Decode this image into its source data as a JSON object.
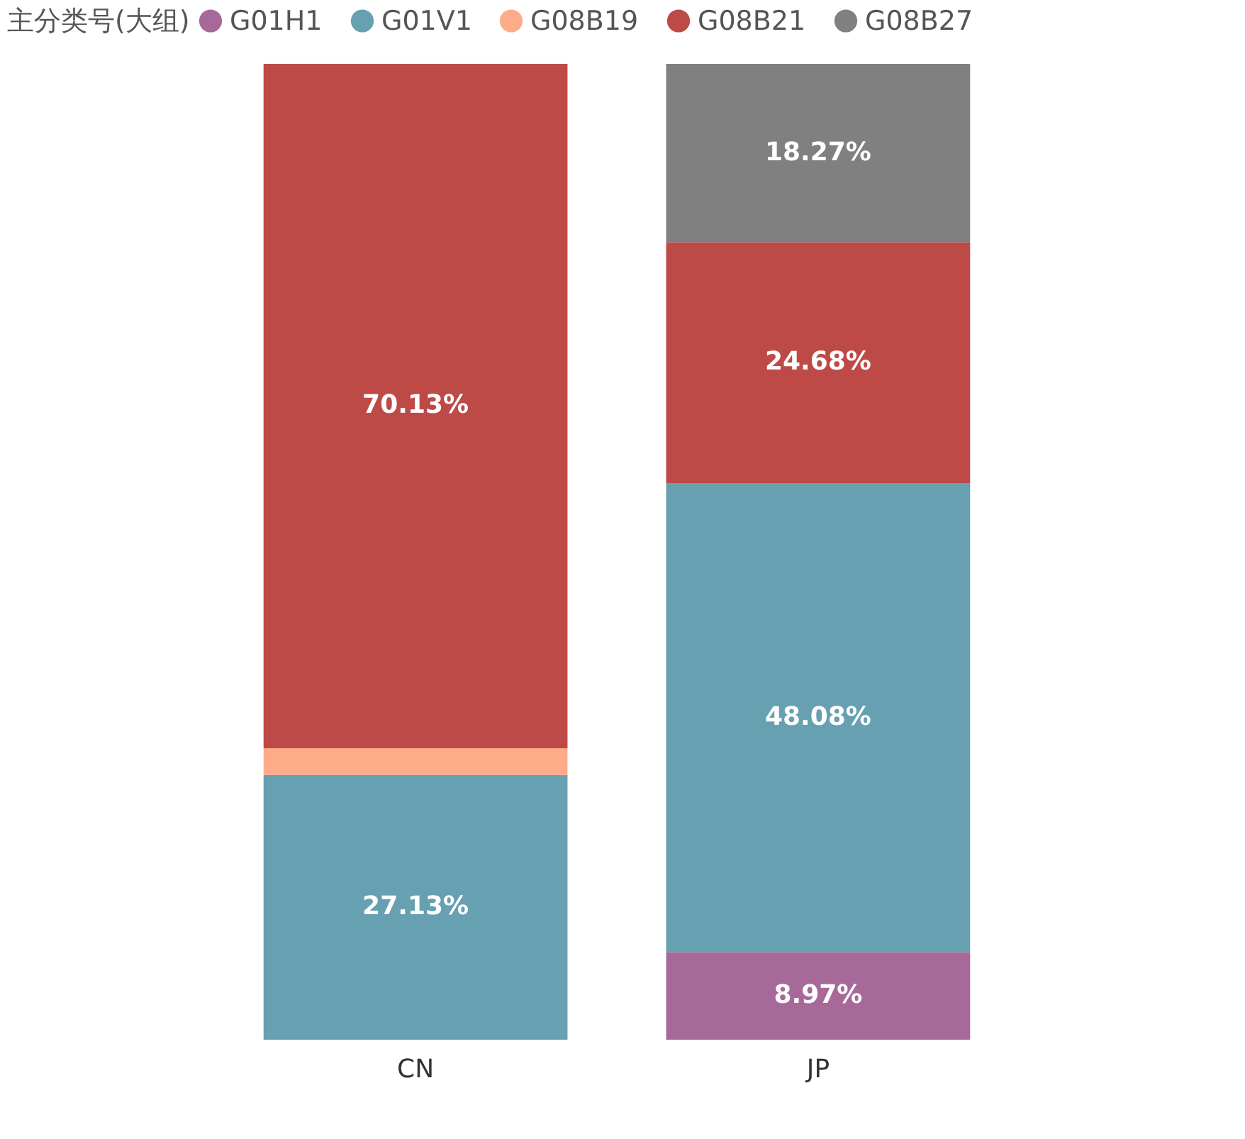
{
  "chart_data": {
    "type": "bar",
    "stacked": true,
    "legend_title": "主分类号(大组)",
    "legend": "top",
    "categories": [
      "CN",
      "JP"
    ],
    "ylim": [
      0,
      100
    ],
    "tick_labels": "x",
    "grid": false,
    "series": [
      {
        "name": "G01H1",
        "color": "#a66999",
        "values": [
          null,
          8.97
        ],
        "value_labels": [
          null,
          "8.97%"
        ]
      },
      {
        "name": "G01V1",
        "color": "#66a0b1",
        "values": [
          27.13,
          48.08
        ],
        "value_labels": [
          "27.13%",
          "48.08%"
        ]
      },
      {
        "name": "G08B19",
        "color": "#fdab89",
        "values": [
          2.74,
          null
        ],
        "value_labels": [
          null,
          null
        ]
      },
      {
        "name": "G08B21",
        "color": "#bd4a47",
        "values": [
          70.13,
          24.68
        ],
        "value_labels": [
          "70.13%",
          "24.68%"
        ]
      },
      {
        "name": "G08B27",
        "color": "#808080",
        "values": [
          null,
          18.27
        ],
        "value_labels": [
          null,
          "18.27%"
        ]
      }
    ]
  }
}
